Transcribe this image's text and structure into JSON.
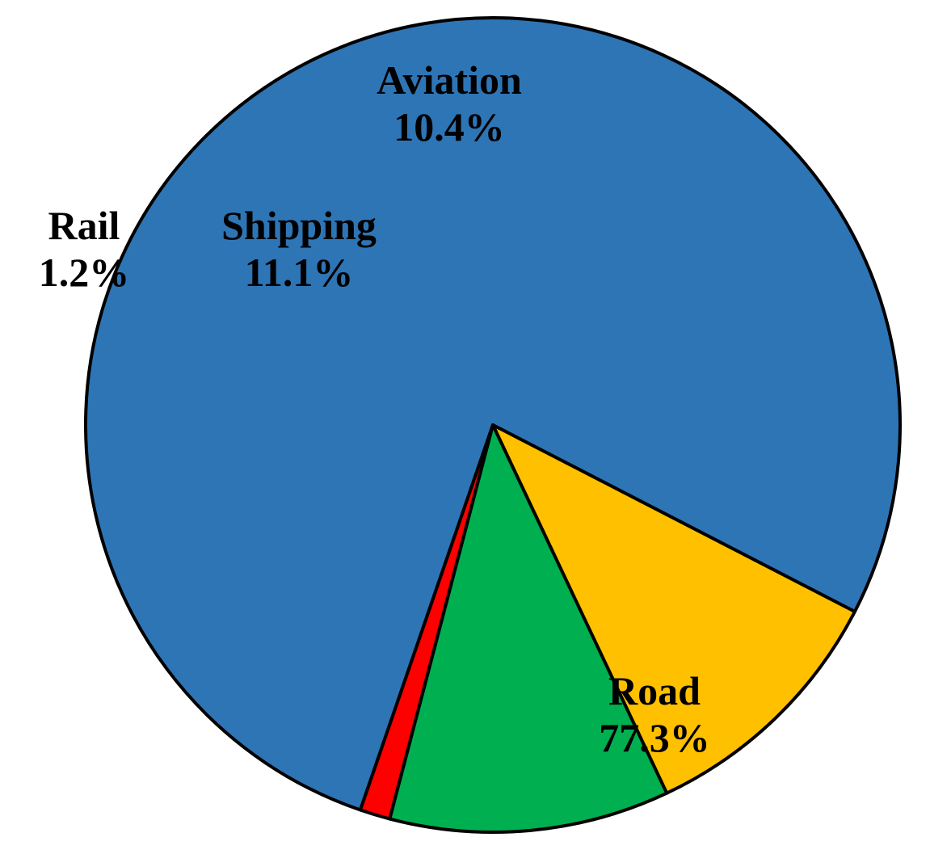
{
  "chart_data": {
    "type": "pie",
    "title": "",
    "start_angle_deg": 251,
    "direction": "counterclockwise",
    "slices": [
      {
        "label": "Road",
        "value": 77.3,
        "display": "77.3%",
        "color": "#2E75B6"
      },
      {
        "label": "Aviation",
        "value": 10.4,
        "display": "10.4%",
        "color": "#FFC000"
      },
      {
        "label": "Shipping",
        "value": 11.1,
        "display": "11.1%",
        "color": "#00B050"
      },
      {
        "label": "Rail",
        "value": 1.2,
        "display": "1.2%",
        "color": "#FF0000"
      }
    ]
  }
}
